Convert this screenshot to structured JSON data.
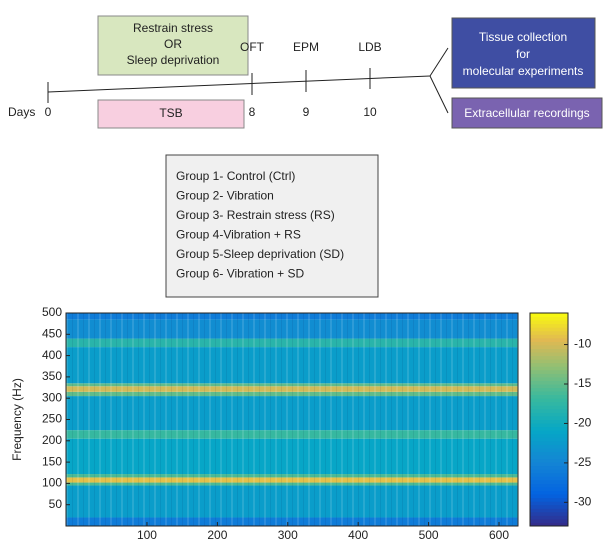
{
  "timeline": {
    "days_label": "Days",
    "day0": "0",
    "box_stress": [
      "Restrain stress",
      "OR",
      "Sleep deprivation"
    ],
    "box_tsb": "TSB",
    "tests": [
      {
        "name": "OFT",
        "day": "8"
      },
      {
        "name": "EPM",
        "day": "9"
      },
      {
        "name": "LDB",
        "day": "10"
      }
    ],
    "box_tissue": [
      "Tissue collection",
      "for",
      "molecular experiments"
    ],
    "box_recordings": "Extracellular  recordings"
  },
  "groups": [
    "Group 1- Control (Ctrl)",
    "Group 2- Vibration",
    "Group 3- Restrain stress (RS)",
    "Group 4-Vibration + RS",
    "Group 5-Sleep deprivation (SD)",
    "Group 6- Vibration + SD"
  ],
  "chart_data": {
    "type": "heatmap",
    "ylabel": "Frequency (Hz)",
    "xlim": [
      -15,
      627
    ],
    "xticks": [
      100,
      200,
      300,
      400,
      500,
      600
    ],
    "ylim": [
      0,
      500
    ],
    "yticks": [
      50,
      100,
      150,
      200,
      250,
      300,
      350,
      400,
      450,
      500
    ],
    "ybins": [
      0,
      20,
      95,
      102,
      114,
      122,
      205,
      225,
      305,
      315,
      328,
      335,
      420,
      440,
      485,
      500
    ],
    "values": [
      -26,
      -22,
      -16,
      -9,
      -16,
      -21,
      -17,
      -22,
      -15,
      -10,
      -15,
      -22,
      -18,
      -24,
      -26
    ],
    "clim": [
      -33,
      -6
    ],
    "cticks": [
      -10,
      -15,
      -20,
      -25,
      -30
    ]
  }
}
